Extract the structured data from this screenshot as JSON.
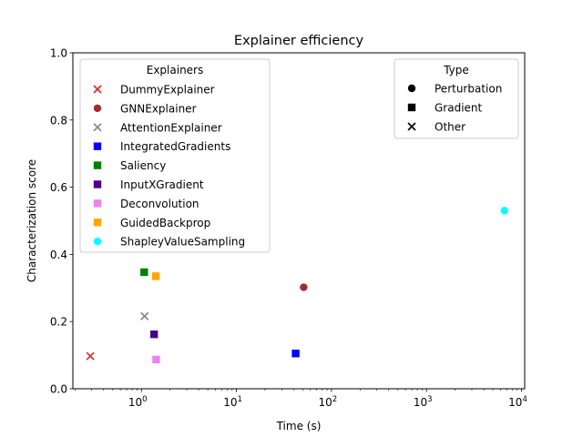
{
  "chart_data": {
    "type": "scatter",
    "title": "Explainer efficiency",
    "xlabel": "Time (s)",
    "ylabel": "Characterization score",
    "xscale": "log",
    "xlim": [
      0.19,
      10800
    ],
    "ylim": [
      0,
      1.0
    ],
    "x_ticks": [
      {
        "value": 1,
        "base": "10",
        "exp": "0"
      },
      {
        "value": 10,
        "base": "10",
        "exp": "1"
      },
      {
        "value": 100,
        "base": "10",
        "exp": "2"
      },
      {
        "value": 1000,
        "base": "10",
        "exp": "3"
      },
      {
        "value": 10000,
        "base": "10",
        "exp": "4"
      }
    ],
    "y_ticks": [
      {
        "value": 0.0,
        "label": "0.0"
      },
      {
        "value": 0.2,
        "label": "0.2"
      },
      {
        "value": 0.4,
        "label": "0.4"
      },
      {
        "value": 0.6,
        "label": "0.6"
      },
      {
        "value": 0.8,
        "label": "0.8"
      },
      {
        "value": 1.0,
        "label": "1.0"
      }
    ],
    "grid": false,
    "legend_explainers": {
      "title": "Explainers",
      "placement": "upper-left",
      "entries": [
        {
          "name": "DummyExplainer",
          "color": "#d62728",
          "marker": "x"
        },
        {
          "name": "GNNExplainer",
          "color": "#a52a2a",
          "marker": "circle"
        },
        {
          "name": "AttentionExplainer",
          "color": "#808080",
          "marker": "x"
        },
        {
          "name": "IntegratedGradients",
          "color": "#0000ff",
          "marker": "square"
        },
        {
          "name": "Saliency",
          "color": "#008000",
          "marker": "square"
        },
        {
          "name": "InputXGradient",
          "color": "#4b0082",
          "marker": "square"
        },
        {
          "name": "Deconvolution",
          "color": "#ee82ee",
          "marker": "square"
        },
        {
          "name": "GuidedBackprop",
          "color": "#ffa500",
          "marker": "square"
        },
        {
          "name": "ShapleyValueSampling",
          "color": "#00ffff",
          "marker": "circle"
        }
      ]
    },
    "legend_type": {
      "title": "Type",
      "placement": "upper-right",
      "entries": [
        {
          "name": "Perturbation",
          "marker": "circle"
        },
        {
          "name": "Gradient",
          "marker": "square"
        },
        {
          "name": "Other",
          "marker": "x"
        }
      ]
    },
    "points": [
      {
        "name": "DummyExplainer",
        "x": 0.29,
        "y": 0.097,
        "color": "#d62728",
        "marker": "x"
      },
      {
        "name": "GNNExplainer",
        "x": 51,
        "y": 0.302,
        "color": "#a52a2a",
        "marker": "circle"
      },
      {
        "name": "AttentionExplainer",
        "x": 1.08,
        "y": 0.216,
        "color": "#808080",
        "marker": "x"
      },
      {
        "name": "IntegratedGradients",
        "x": 42,
        "y": 0.105,
        "color": "#0000ff",
        "marker": "square"
      },
      {
        "name": "Saliency",
        "x": 1.07,
        "y": 0.347,
        "color": "#008000",
        "marker": "square"
      },
      {
        "name": "InputXGradient",
        "x": 1.36,
        "y": 0.162,
        "color": "#4b0082",
        "marker": "square"
      },
      {
        "name": "Deconvolution",
        "x": 1.43,
        "y": 0.087,
        "color": "#ee82ee",
        "marker": "square"
      },
      {
        "name": "GuidedBackprop",
        "x": 1.42,
        "y": 0.335,
        "color": "#ffa500",
        "marker": "square"
      },
      {
        "name": "ShapleyValueSampling",
        "x": 6600,
        "y": 0.53,
        "color": "#00ffff",
        "marker": "circle"
      }
    ]
  }
}
